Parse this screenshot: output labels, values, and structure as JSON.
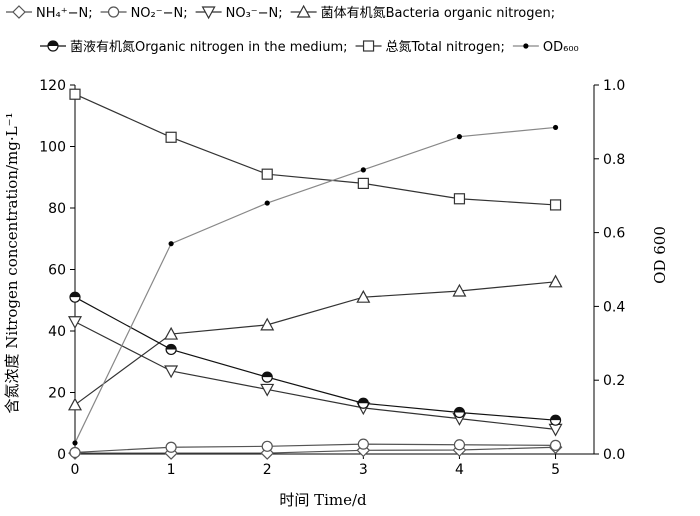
{
  "chart_data": {
    "type": "line",
    "xlabel": "时间 Time/d",
    "ylabel": "含氮浓度 Nitrogen concentration/mg·L⁻¹",
    "y2label": "OD 600",
    "x": [
      0,
      1,
      2,
      3,
      4,
      5
    ],
    "xlim": [
      0,
      5.4
    ],
    "ylim": [
      0,
      120
    ],
    "y2lim": [
      0,
      1.0
    ],
    "xticks": [
      "0",
      "1",
      "2",
      "3",
      "4",
      "5"
    ],
    "yticks": [
      "0",
      "20",
      "40",
      "60",
      "80",
      "100",
      "120"
    ],
    "y2ticks": [
      "0.0",
      "0.2",
      "0.4",
      "0.6",
      "0.8",
      "1.0"
    ],
    "grid": false,
    "legend_position": "top",
    "series": [
      {
        "name": "NH₄⁺−N;",
        "marker": "diamond",
        "axis": "left",
        "color": "#555555",
        "values": [
          0.3,
          0.3,
          0.3,
          1.2,
          1.3,
          2.2
        ]
      },
      {
        "name": "NO₂⁻−N;",
        "marker": "circle",
        "axis": "left",
        "color": "#555555",
        "values": [
          0.5,
          2.2,
          2.5,
          3.2,
          3.0,
          2.8
        ]
      },
      {
        "name": "NO₃⁻−N;",
        "marker": "triangle-down",
        "axis": "left",
        "color": "#333333",
        "values": [
          43.0,
          27.0,
          21.0,
          15.0,
          11.5,
          8.0
        ]
      },
      {
        "name": "菌体有机氮Bacteria organic nitrogen;",
        "marker": "triangle-up",
        "axis": "left",
        "color": "#333333",
        "values": [
          16.0,
          39.0,
          42.0,
          51.0,
          53.0,
          56.0
        ]
      },
      {
        "name": "菌液有机氮Organic nitrogen in the medium;",
        "marker": "circle-half",
        "axis": "left",
        "color": "#111111",
        "values": [
          51.0,
          34.0,
          25.0,
          16.5,
          13.5,
          11.0
        ]
      },
      {
        "name": "总氮Total nitrogen;",
        "marker": "square",
        "axis": "left",
        "color": "#333333",
        "values": [
          117.0,
          103.0,
          91.0,
          88.0,
          83.0,
          81.0
        ]
      },
      {
        "name": "OD₆₀₀",
        "marker": "dot",
        "axis": "right",
        "color": "#888888",
        "values": [
          0.03,
          0.57,
          0.68,
          0.77,
          0.86,
          0.885
        ]
      }
    ]
  }
}
